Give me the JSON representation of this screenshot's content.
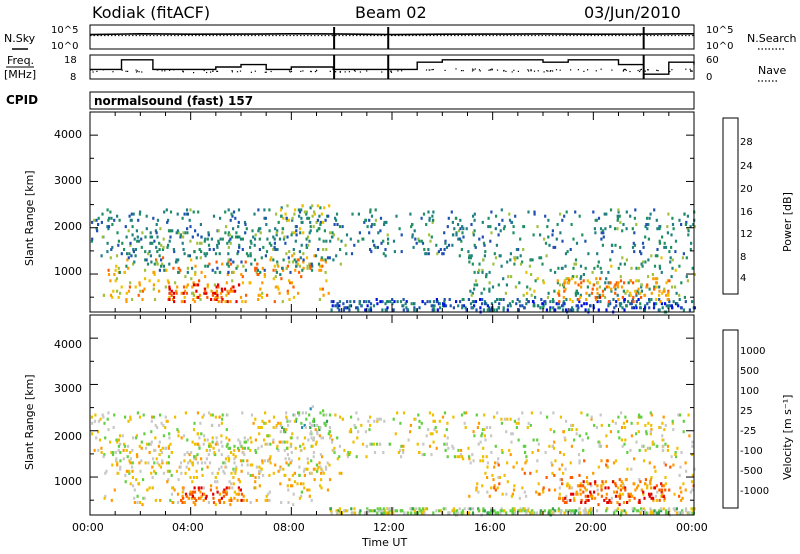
{
  "header": {
    "radar": "Kodiak (fitACF)",
    "beam": "Beam 02",
    "date": "03/Jun/2010"
  },
  "top_panels": {
    "nsky_label": "N.Sky",
    "nsearch_label": "N.Search",
    "freq_label_1": "Freq.",
    "freq_label_2": "[MHz]",
    "nave_label": "Nave",
    "cpid_label": "CPID",
    "noise_left_ticks": [
      "10^5",
      "10^0"
    ],
    "noise_right_ticks": [
      "10^5",
      "10^0"
    ],
    "freq_ticks": [
      "18",
      "8"
    ],
    "nave_ticks": [
      "60",
      "0"
    ],
    "cpid_text": "normalsound (fast) 157"
  },
  "colorbars": {
    "power": {
      "label": "Power [dB]",
      "ticks": [
        "28",
        "24",
        "20",
        "16",
        "12",
        "8",
        "4"
      ],
      "colors": [
        "#e00000",
        "#ff5a00",
        "#ff9a00",
        "#f0c000",
        "#a0c040",
        "#209060",
        "#208080",
        "#2050b0",
        "#0010e0"
      ]
    },
    "velocity": {
      "label": "Velocity [m s⁻¹]",
      "ticks": [
        "1000",
        "500",
        "100",
        "25",
        "-25",
        "-100",
        "-500",
        "-1000"
      ],
      "colors": [
        "#1030c0",
        "#2090b0",
        "#30a050",
        "#60d040",
        "#c8c8c8",
        "#f0c000",
        "#ff9a00",
        "#ff5a00",
        "#e00000"
      ]
    }
  },
  "axes": {
    "ylabel": "Slant Range [km]",
    "yticks": [
      "4000",
      "3000",
      "2000",
      "1000"
    ],
    "xlabel": "Time UT",
    "xticks": [
      "00:00",
      "04:00",
      "08:00",
      "12:00",
      "16:00",
      "20:00",
      "00:00"
    ]
  },
  "chart_data": [
    {
      "type": "line",
      "title": "",
      "series": [
        {
          "name": "N.Sky",
          "x": [
            "00:00",
            "02:00",
            "04:00",
            "06:00",
            "08:00",
            "09:40",
            "12:00",
            "14:00",
            "16:00",
            "18:00",
            "20:00",
            "22:00",
            "24:00"
          ],
          "values": [
            1000,
            1500,
            1200,
            1300,
            1500,
            1400,
            1000,
            1200,
            1300,
            1400,
            1200,
            1300,
            1500
          ]
        },
        {
          "name": "N.Search",
          "x": [
            "00:00",
            "04:00",
            "08:00",
            "12:00",
            "16:00",
            "20:00",
            "24:00"
          ],
          "values": [
            1000,
            1000,
            1000,
            1000,
            1000,
            1000,
            1000
          ]
        }
      ],
      "ylim": [
        "10^0",
        "10^5"
      ]
    },
    {
      "type": "line",
      "title": "",
      "series": [
        {
          "name": "Freq.",
          "x": [
            "00:00",
            "01:15",
            "02:30",
            "04:00",
            "05:00",
            "06:00",
            "07:00",
            "08:00",
            "09:40",
            "12:00",
            "13:00",
            "14:00",
            "16:00",
            "18:00",
            "19:00",
            "20:00",
            "21:00",
            "22:00",
            "23:00",
            "24:00"
          ],
          "values": [
            12,
            16,
            12,
            12,
            13,
            14,
            12,
            13,
            12,
            12,
            15,
            16,
            16,
            15,
            16,
            16,
            14,
            10,
            15,
            14
          ]
        },
        {
          "name": "Nave",
          "x": [
            "00:00",
            "04:00",
            "08:00",
            "12:00",
            "16:00",
            "20:00",
            "24:00"
          ],
          "values": [
            22,
            20,
            21,
            24,
            22,
            23,
            24
          ]
        }
      ],
      "ylim_left": [
        8,
        18
      ],
      "ylim_right": [
        0,
        60
      ]
    },
    {
      "type": "heatmap",
      "title": "",
      "xlabel": "",
      "ylabel": "Slant Range [km]",
      "colorbar_label": "Power [dB]",
      "xlim": [
        "00:00",
        "24:00"
      ],
      "ylim": [
        180,
        4500
      ],
      "clim": [
        0,
        30
      ],
      "bands": [
        {
          "x0": 0.5,
          "x1": 9.5,
          "r0": 400,
          "r1": 1400,
          "level": 20
        },
        {
          "x0": 3.0,
          "x1": 6.0,
          "r0": 400,
          "r1": 800,
          "level": 26
        },
        {
          "x0": 1.0,
          "x1": 10.0,
          "r0": 1000,
          "r1": 1900,
          "level": 10
        },
        {
          "x0": 7.5,
          "x1": 9.5,
          "r0": 1900,
          "r1": 2500,
          "level": 14
        },
        {
          "x0": 9.5,
          "x1": 24.0,
          "r0": 200,
          "r1": 450,
          "level": 6
        },
        {
          "x0": 15.0,
          "x1": 24.0,
          "r0": 500,
          "r1": 1400,
          "level": 12
        },
        {
          "x0": 18.5,
          "x1": 23.0,
          "r0": 400,
          "r1": 900,
          "level": 22
        },
        {
          "x0": 0.0,
          "x1": 24.0,
          "r0": 1400,
          "r1": 2400,
          "level": 9
        }
      ]
    },
    {
      "type": "heatmap",
      "title": "",
      "xlabel": "Time UT",
      "ylabel": "Slant Range [km]",
      "colorbar_label": "Velocity [m s⁻¹]",
      "xlim": [
        "00:00",
        "24:00"
      ],
      "ylim": [
        180,
        4500
      ],
      "clim": [
        -1000,
        1000
      ],
      "bands": [
        {
          "x0": 0.5,
          "x1": 9.5,
          "r0": 400,
          "r1": 1400,
          "level": -200
        },
        {
          "x0": 3.0,
          "x1": 6.0,
          "r0": 400,
          "r1": 800,
          "level": -600
        },
        {
          "x0": 1.0,
          "x1": 10.0,
          "r0": 1000,
          "r1": 1900,
          "level": -80
        },
        {
          "x0": 7.5,
          "x1": 9.5,
          "r0": 1900,
          "r1": 2500,
          "level": 300
        },
        {
          "x0": 9.5,
          "x1": 24.0,
          "r0": 200,
          "r1": 320,
          "level": 60
        },
        {
          "x0": 15.0,
          "x1": 24.0,
          "r0": 500,
          "r1": 1400,
          "level": -300
        },
        {
          "x0": 18.5,
          "x1": 23.0,
          "r0": 400,
          "r1": 900,
          "level": -700
        },
        {
          "x0": 0.0,
          "x1": 24.0,
          "r0": 1400,
          "r1": 2400,
          "level": -50
        }
      ]
    }
  ]
}
